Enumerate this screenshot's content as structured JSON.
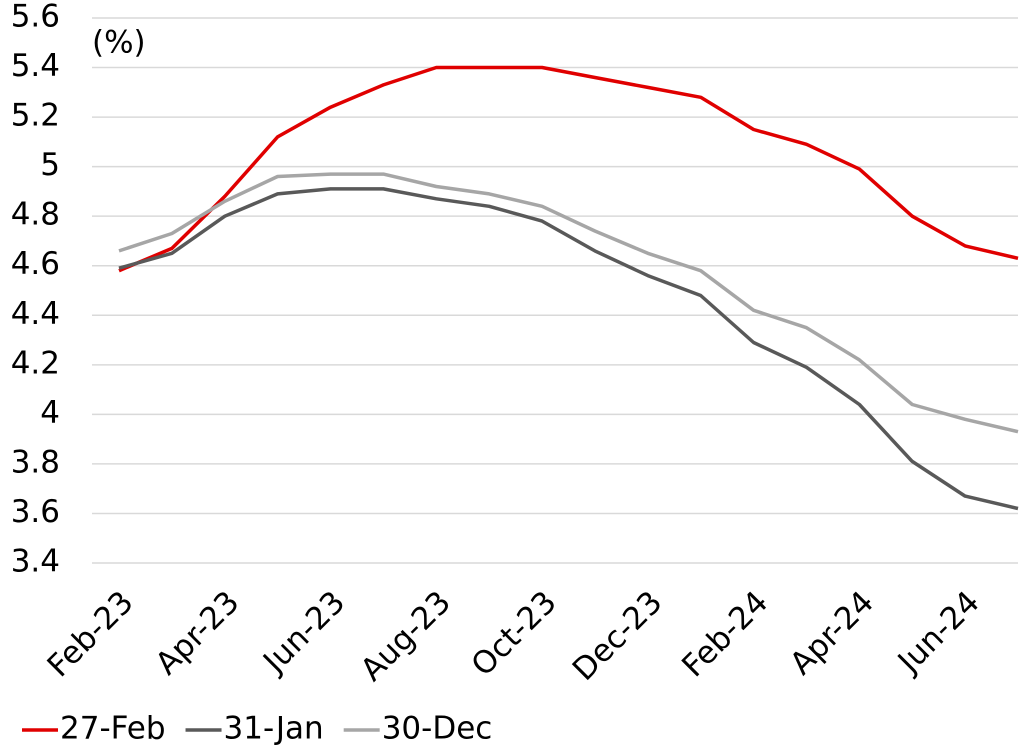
{
  "chart_data": {
    "type": "line",
    "annotation": "(%)",
    "categories": [
      "Feb-23",
      null,
      "Apr-23",
      null,
      "Jun-23",
      null,
      "Aug-23",
      null,
      "Oct-23",
      null,
      "Dec-23",
      null,
      "Feb-24",
      null,
      "Apr-24",
      null,
      "Jun-24",
      null
    ],
    "series": [
      {
        "name": "27-Feb",
        "color": "#e00000",
        "values": [
          4.58,
          4.67,
          4.88,
          5.12,
          5.24,
          5.33,
          5.4,
          5.4,
          5.4,
          5.36,
          5.32,
          5.28,
          5.15,
          5.09,
          4.99,
          4.8,
          4.68,
          4.63
        ]
      },
      {
        "name": "31-Jan",
        "color": "#595959",
        "values": [
          4.59,
          4.65,
          4.8,
          4.89,
          4.91,
          4.91,
          4.87,
          4.84,
          4.78,
          4.66,
          4.56,
          4.48,
          4.29,
          4.19,
          4.04,
          3.81,
          3.67,
          3.62
        ]
      },
      {
        "name": "30-Dec",
        "color": "#a6a6a6",
        "values": [
          4.66,
          4.73,
          4.86,
          4.96,
          4.97,
          4.97,
          4.92,
          4.89,
          4.84,
          4.74,
          4.65,
          4.58,
          4.42,
          4.35,
          4.22,
          4.04,
          3.98,
          3.93
        ]
      }
    ],
    "ylim": [
      3.4,
      5.6
    ],
    "yticks": [
      3.4,
      3.6,
      3.8,
      4,
      4.2,
      4.4,
      4.6,
      4.8,
      5,
      5.2,
      5.4,
      5.6
    ],
    "grid": true,
    "legend": "bottom"
  }
}
